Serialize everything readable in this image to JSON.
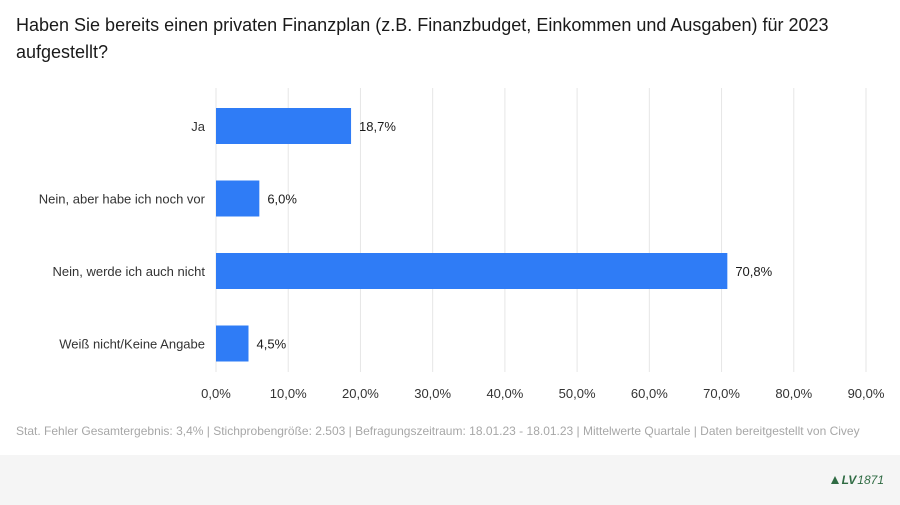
{
  "title": "Haben Sie bereits einen privaten Finanzplan (z.B. Finanzbudget, Einkommen und Ausgaben) für 2023 aufgestellt?",
  "footer_note": "Stat. Fehler Gesamtergebnis: 3,4% | Stichprobengröße: 2.503 | Befragungszeitraum: 18.01.23 - 18.01.23 | Mittelwerte Quartale | Daten bereitgestellt von Civey",
  "logo": {
    "text": "LV",
    "number": "1871",
    "color": "#2f6b43"
  },
  "colors": {
    "bar": "#2f7cf6",
    "grid": "#e6e6e6",
    "axis_text": "#333333"
  },
  "chart_data": {
    "type": "bar",
    "orientation": "horizontal",
    "categories": [
      "Ja",
      "Nein, aber habe ich noch vor",
      "Nein, werde ich auch nicht",
      "Weiß nicht/Keine Angabe"
    ],
    "values": [
      18.7,
      6.0,
      70.8,
      4.5
    ],
    "value_labels": [
      "18,7%",
      "6,0%",
      "70,8%",
      "4,5%"
    ],
    "xlim": [
      0,
      90
    ],
    "xticks": [
      0,
      10,
      20,
      30,
      40,
      50,
      60,
      70,
      80,
      90
    ],
    "xtick_labels": [
      "0,0%",
      "10,0%",
      "20,0%",
      "30,0%",
      "40,0%",
      "50,0%",
      "60,0%",
      "70,0%",
      "80,0%",
      "90,0%"
    ],
    "grid": true,
    "xlabel": "",
    "ylabel": ""
  }
}
